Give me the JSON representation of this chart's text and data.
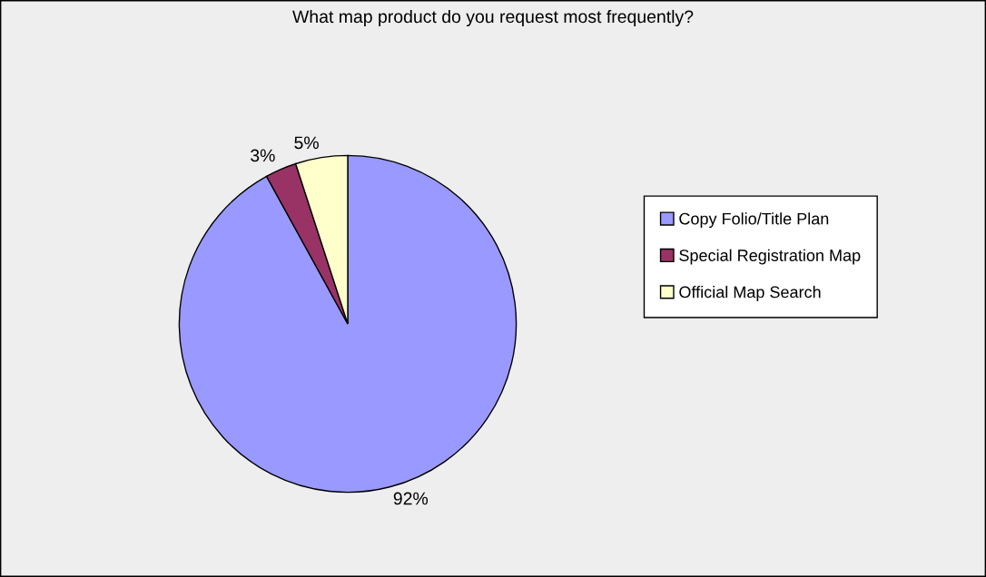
{
  "chart_data": {
    "type": "pie",
    "title": "What map product do you request most frequently?",
    "categories": [
      "Copy Folio/Title Plan",
      "Special Registration Map",
      "Official Map Search"
    ],
    "values": [
      92,
      3,
      5
    ],
    "colors": [
      "#9999ff",
      "#993366",
      "#ffffcc"
    ],
    "value_labels": [
      "92%",
      "3%",
      "5%"
    ],
    "legend": "right"
  }
}
